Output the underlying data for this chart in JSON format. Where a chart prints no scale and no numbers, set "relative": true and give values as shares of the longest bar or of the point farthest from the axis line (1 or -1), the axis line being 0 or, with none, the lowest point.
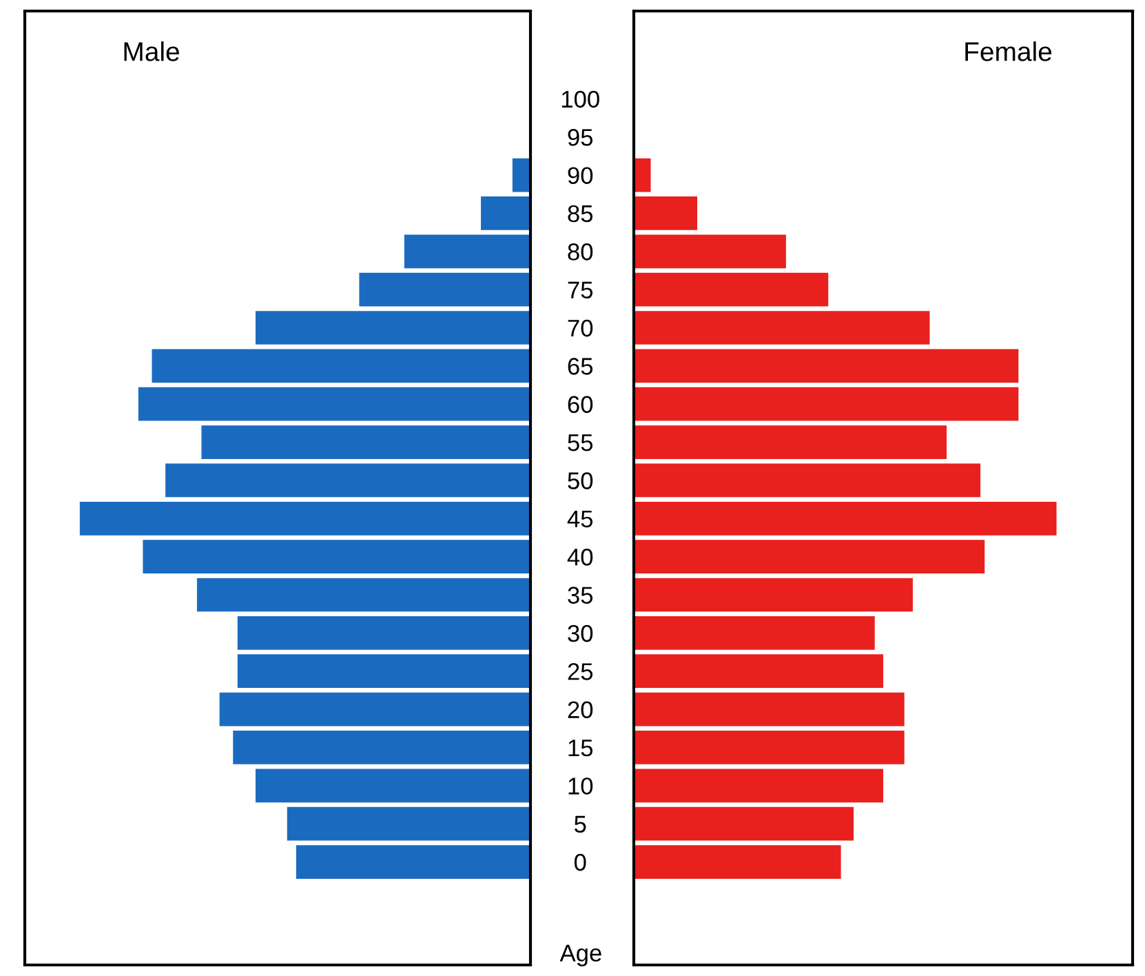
{
  "chart_data": [
    {
      "type": "bar",
      "orientation": "horizontal",
      "relative": true,
      "title": "Male",
      "ylabel": "Age",
      "tick_labels": "y",
      "grid": false,
      "legend": false,
      "categories": [
        "100",
        "95",
        "90",
        "85",
        "80",
        "75",
        "70",
        "65",
        "60",
        "55",
        "50",
        "45",
        "40",
        "35",
        "30",
        "25",
        "20",
        "15",
        "10",
        "5",
        "0"
      ],
      "series": [
        {
          "color": "#1a6bbf",
          "values": [
            null,
            null,
            0.04,
            0.11,
            0.28,
            0.38,
            0.61,
            0.84,
            0.87,
            0.73,
            0.81,
            1,
            0.86,
            0.74,
            0.65,
            0.65,
            0.69,
            0.66,
            0.61,
            0.54,
            0.52
          ]
        }
      ]
    },
    {
      "type": "bar",
      "orientation": "horizontal",
      "relative": true,
      "title": "Female",
      "tick_labels": false,
      "grid": false,
      "legend": false,
      "categories": [
        "100",
        "95",
        "90",
        "85",
        "80",
        "75",
        "70",
        "65",
        "60",
        "55",
        "50",
        "45",
        "40",
        "35",
        "30",
        "25",
        "20",
        "15",
        "10",
        "5",
        "0"
      ],
      "series": [
        {
          "color": "#e8201e",
          "values": [
            null,
            null,
            0.04,
            0.15,
            0.36,
            0.46,
            0.7,
            0.91,
            0.91,
            0.74,
            0.82,
            1,
            0.83,
            0.66,
            0.57,
            0.59,
            0.64,
            0.64,
            0.59,
            0.52,
            0.49
          ]
        }
      ]
    }
  ]
}
